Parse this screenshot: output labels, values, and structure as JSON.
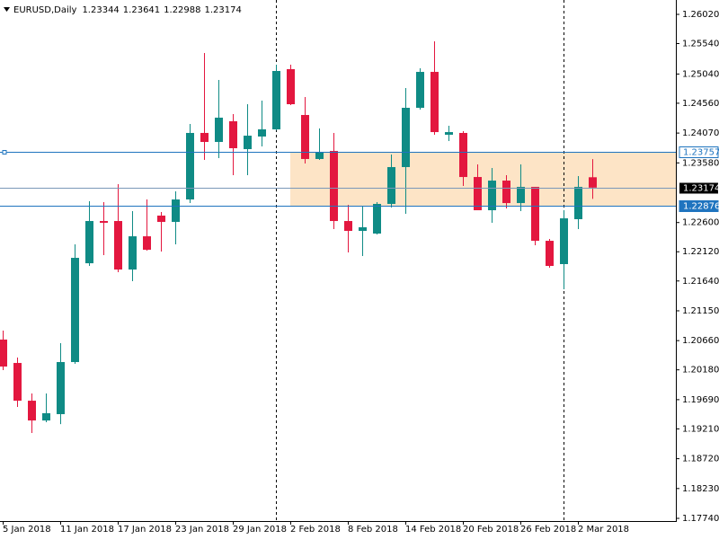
{
  "chart_data": {
    "type": "candlestick",
    "title": "EURUSD,Daily",
    "categories": [
      "5 Jan 2018",
      null,
      null,
      null,
      "11 Jan 2018",
      null,
      null,
      null,
      "17 Jan 2018",
      null,
      null,
      null,
      "23 Jan 2018",
      null,
      null,
      null,
      "29 Jan 2018",
      null,
      null,
      null,
      "2 Feb 2018",
      null,
      null,
      null,
      "8 Feb 2018",
      null,
      null,
      null,
      "14 Feb 2018",
      null,
      null,
      null,
      "20 Feb 2018",
      null,
      null,
      null,
      "26 Feb 2018",
      null,
      null,
      null,
      "2 Mar 2018",
      null
    ],
    "open": [
      1.20677,
      1.20293,
      1.19673,
      1.19348,
      1.19452,
      1.20308,
      1.21931,
      1.22625,
      1.22625,
      1.21828,
      1.22374,
      1.22714,
      1.2261,
      1.22979,
      1.24072,
      1.23924,
      1.24264,
      1.23806,
      1.24013,
      1.24131,
      1.2512,
      1.24367,
      1.23644,
      1.23776,
      1.22625,
      1.22463,
      1.22419,
      1.22906,
      1.23511,
      1.24485,
      1.25075,
      1.24042,
      1.24072,
      1.23348,
      1.22802,
      1.23289,
      1.2292,
      1.23186,
      1.223,
      1.21917,
      1.22655,
      1.23344
    ],
    "high": [
      1.20824,
      1.20382,
      1.19791,
      1.19791,
      1.20618,
      1.22241,
      1.2295,
      1.22935,
      1.2323,
      1.22788,
      1.22979,
      1.22773,
      1.23112,
      1.24219,
      1.25385,
      1.24943,
      1.24382,
      1.24544,
      1.24603,
      1.25193,
      1.25193,
      1.24662,
      1.24145,
      1.24072,
      1.22891,
      1.22861,
      1.22935,
      1.23717,
      1.2481,
      1.25134,
      1.25577,
      1.2419,
      1.24101,
      1.23555,
      1.23496,
      1.23378,
      1.23555,
      1.23186,
      1.2233,
      1.22802,
      1.23363,
      1.23641
    ],
    "low": [
      1.20175,
      1.1957,
      1.19142,
      1.19319,
      1.19289,
      1.20278,
      1.21887,
      1.22064,
      1.21784,
      1.21636,
      1.22138,
      1.22123,
      1.22241,
      1.2292,
      1.23629,
      1.23658,
      1.23378,
      1.23378,
      1.2385,
      1.24116,
      1.24529,
      1.2357,
      1.23629,
      1.22492,
      1.22109,
      1.2205,
      1.22404,
      1.22847,
      1.22743,
      1.24455,
      1.24042,
      1.23939,
      1.23201,
      1.22802,
      1.22596,
      1.22832,
      1.22788,
      1.22227,
      1.21858,
      1.21503,
      1.22492,
      1.22988
    ],
    "close": [
      1.20234,
      1.19673,
      1.19348,
      1.19467,
      1.20308,
      1.2202,
      1.22625,
      1.22596,
      1.21828,
      1.22374,
      1.22153,
      1.2261,
      1.22979,
      1.24072,
      1.23924,
      1.24323,
      1.23821,
      1.24027,
      1.24131,
      1.2509,
      1.24544,
      1.23644,
      1.23747,
      1.22625,
      1.22463,
      1.22522,
      1.22906,
      1.23511,
      1.24485,
      1.25075,
      1.24086,
      1.24086,
      1.23348,
      1.22802,
      1.23289,
      1.2292,
      1.23186,
      1.223,
      1.21887,
      1.22669,
      1.23186,
      1.23174
    ],
    "up_color": "#0f8b85",
    "down_color": "#e3173f",
    "ylim": [
      1.17696,
      1.26256
    ],
    "yticks": [
      {
        "value": 1.2602,
        "label": "1.26020"
      },
      {
        "value": 1.2554,
        "label": "1.25540"
      },
      {
        "value": 1.2504,
        "label": "1.25040"
      },
      {
        "value": 1.2456,
        "label": "1.24560"
      },
      {
        "value": 1.2407,
        "label": "1.24070"
      },
      {
        "value": 1.2358,
        "label": "1.23580"
      },
      {
        "value": 1.226,
        "label": "1.22600"
      },
      {
        "value": 1.2212,
        "label": "1.22120"
      },
      {
        "value": 1.2164,
        "label": "1.21640"
      },
      {
        "value": 1.2115,
        "label": "1.21150"
      },
      {
        "value": 1.2066,
        "label": "1.20660"
      },
      {
        "value": 1.2018,
        "label": "1.20180"
      },
      {
        "value": 1.1969,
        "label": "1.19690"
      },
      {
        "value": 1.1921,
        "label": "1.19210"
      },
      {
        "value": 1.1872,
        "label": "1.18720"
      },
      {
        "value": 1.1823,
        "label": "1.18230"
      },
      {
        "value": 1.1774,
        "label": "1.17740"
      }
    ],
    "levels": [
      {
        "value": 1.23757,
        "style": "outline"
      },
      {
        "value": 1.22876,
        "style": "filled"
      }
    ],
    "level_color": "#1f74bf",
    "zone_color": "#fde4c6",
    "grid": false
  }
}
